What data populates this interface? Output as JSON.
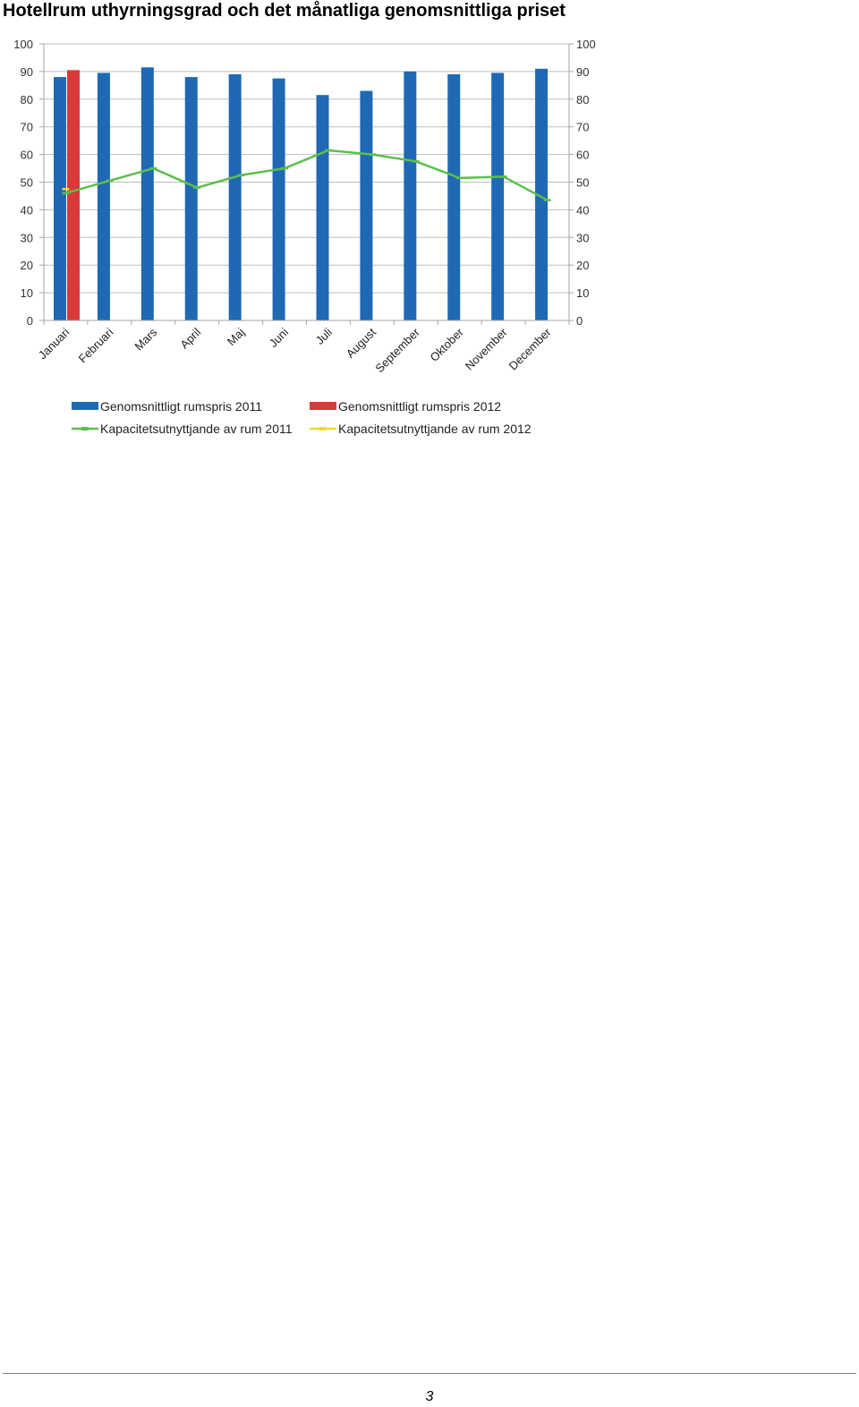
{
  "page": {
    "title": "Hotellrum uthyrningsgrad och det månatliga genomsnittliga priset",
    "page_number": "3"
  },
  "colors": {
    "bar_2011": "#1f69b4",
    "bar_2012": "#d9393b",
    "line_2011": "#5cbf4c",
    "line_2012": "#f2dc2a",
    "grid": "#bdbdbd",
    "axis": "#a6a6a6"
  },
  "chart_data": {
    "type": "bar",
    "title": "",
    "xlabel": "",
    "ylabel": "",
    "ylim": [
      0,
      100
    ],
    "y2lim": [
      0,
      100
    ],
    "yticks": [
      0,
      10,
      20,
      30,
      40,
      50,
      60,
      70,
      80,
      90,
      100
    ],
    "grid": true,
    "legend_position": "bottom",
    "categories": [
      "Januari",
      "Februari",
      "Mars",
      "April",
      "Maj",
      "Juni",
      "Juli",
      "August",
      "September",
      "Oktober",
      "November",
      "December"
    ],
    "series": [
      {
        "name": "Genomsnittligt rumspris 2011",
        "kind": "bar",
        "color": "#1f69b4",
        "values": [
          88,
          89.5,
          91.5,
          88,
          89,
          87.5,
          81.5,
          83,
          90,
          89,
          89.5,
          91
        ]
      },
      {
        "name": "Genomsnittligt rumspris 2012",
        "kind": "bar",
        "color": "#d9393b",
        "values": [
          90.5,
          null,
          null,
          null,
          null,
          null,
          null,
          null,
          null,
          null,
          null,
          null
        ]
      },
      {
        "name": "Kapacitetsutnyttjande av rum 2011",
        "kind": "line",
        "color": "#5cbf4c",
        "values": [
          46,
          50.5,
          55,
          48,
          52.5,
          55,
          61.5,
          60,
          57.5,
          51.5,
          52,
          43.5
        ]
      },
      {
        "name": "Kapacitetsutnyttjande av rum 2012",
        "kind": "line",
        "color": "#f2dc2a",
        "values": [
          47.5,
          null,
          null,
          null,
          null,
          null,
          null,
          null,
          null,
          null,
          null,
          null
        ]
      }
    ]
  }
}
